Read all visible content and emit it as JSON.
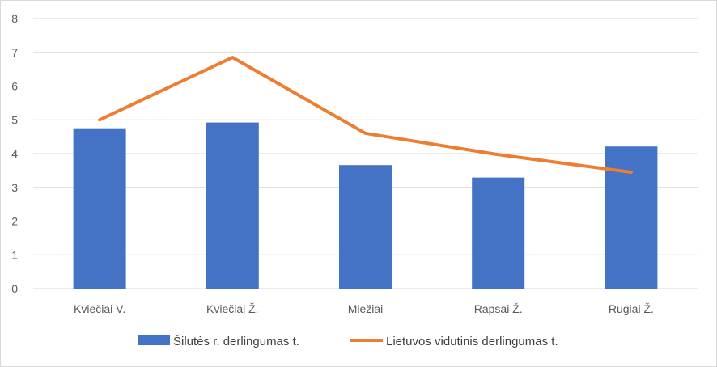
{
  "chart_data": {
    "type": "bar",
    "categories": [
      "Kviečiai V.",
      "Kviečiai Ž.",
      "Miežiai",
      "Rapsai Ž.",
      "Rugiai Ž."
    ],
    "yticks": [
      "0",
      "1",
      "2",
      "3",
      "4",
      "5",
      "6",
      "7",
      "8"
    ],
    "ylim": [
      0,
      8
    ],
    "grid": true,
    "legend_position": "bottom",
    "series": [
      {
        "name": "Šilutės r. derlingumas t.",
        "type": "bar",
        "color": "#4472C4",
        "values": [
          4.75,
          4.92,
          3.66,
          3.29,
          4.21
        ]
      },
      {
        "name": "Lietuvos vidutinis derlingumas t.",
        "type": "line",
        "color": "#ED7D31",
        "values": [
          5.0,
          6.85,
          4.6,
          3.97,
          3.45
        ]
      }
    ]
  }
}
